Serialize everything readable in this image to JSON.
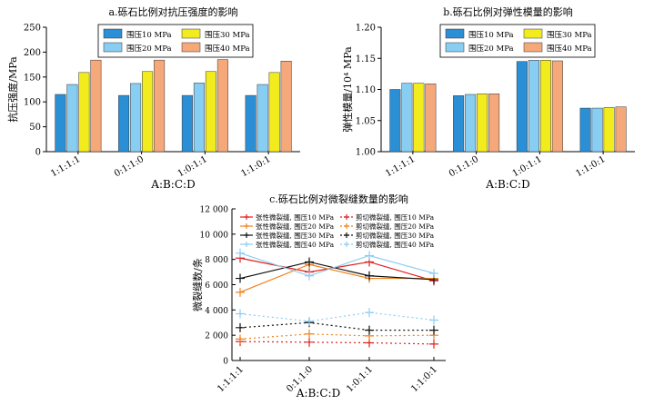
{
  "shared": {
    "xlabel": "A:B:C:D"
  },
  "chart_data": [
    {
      "type": "bar",
      "title": "a.砾石比例对抗压强度的影响",
      "ylabel": "抗压强度/MPa",
      "xlabel": "A:B:C:D",
      "categories": [
        "1:1:1:1",
        "0:1:1:0",
        "1:0:1:1",
        "1:1:0:1"
      ],
      "ylim": [
        0,
        250
      ],
      "yticks": [
        0,
        50,
        100,
        150,
        200,
        250
      ],
      "legend_position": "top-center",
      "series": [
        {
          "name": "围压10 MPa",
          "color": "#2b8fd6",
          "values": [
            115,
            113,
            113,
            113
          ]
        },
        {
          "name": "围压20 MPa",
          "color": "#88cdf2",
          "values": [
            135,
            137,
            138,
            135
          ]
        },
        {
          "name": "围压30 MPa",
          "color": "#f2ec1f",
          "values": [
            159,
            161,
            161,
            159
          ]
        },
        {
          "name": "围压40 MPa",
          "color": "#f5a87a",
          "values": [
            184,
            184,
            185,
            182
          ]
        }
      ]
    },
    {
      "type": "bar",
      "title": "b.砾石比例对弹性模量的影响",
      "ylabel": "弹性模量/10⁴ MPa",
      "xlabel": "A:B:C:D",
      "categories": [
        "1:1:1:1",
        "0:1:1:0",
        "1:0:1:1",
        "1:1:0:1"
      ],
      "ylim": [
        1.0,
        1.2
      ],
      "yticks": [
        "1.00",
        "1.05",
        "1.10",
        "1.15",
        "1.20"
      ],
      "legend_position": "top-center",
      "series": [
        {
          "name": "围压10 MPa",
          "color": "#2b8fd6",
          "values": [
            1.1,
            1.09,
            1.145,
            1.07
          ]
        },
        {
          "name": "围压20 MPa",
          "color": "#88cdf2",
          "values": [
            1.11,
            1.092,
            1.147,
            1.07
          ]
        },
        {
          "name": "围压30 MPa",
          "color": "#f2ec1f",
          "values": [
            1.11,
            1.093,
            1.147,
            1.071
          ]
        },
        {
          "name": "围压40 MPa",
          "color": "#f5a87a",
          "values": [
            1.109,
            1.093,
            1.146,
            1.072
          ]
        }
      ]
    },
    {
      "type": "line",
      "title": "c.砾石比例对微裂缝数量的影响",
      "ylabel": "微裂缝数/条",
      "xlabel": "A:B:C:D",
      "categories": [
        "1:1:1:1",
        "0:1:1:0",
        "1:0:1:1",
        "1:1:0:1"
      ],
      "ylim": [
        0,
        12000
      ],
      "yticks": [
        "0",
        "2 000",
        "4 000",
        "6 000",
        "8 000",
        "10 000",
        "12 000"
      ],
      "legend_position": "top",
      "series": [
        {
          "name": "张性微裂缝, 围压10 MPa",
          "color": "#e02020",
          "dash": false,
          "values": [
            8100,
            7000,
            7800,
            6300
          ]
        },
        {
          "name": "剪切微裂缝, 围压10 MPa",
          "color": "#e02020",
          "dash": true,
          "values": [
            1500,
            1450,
            1400,
            1300
          ]
        },
        {
          "name": "张性微裂缝, 围压20 MPa",
          "color": "#f0821e",
          "dash": false,
          "values": [
            5400,
            7600,
            6500,
            6500
          ]
        },
        {
          "name": "剪切微裂缝, 围压20 MPa",
          "color": "#f0821e",
          "dash": true,
          "values": [
            1700,
            2100,
            1950,
            2000
          ]
        },
        {
          "name": "张性微裂缝, 围压30 MPa",
          "color": "#111111",
          "dash": false,
          "values": [
            6500,
            7800,
            6700,
            6400
          ]
        },
        {
          "name": "剪切微裂缝, 围压30 MPa",
          "color": "#111111",
          "dash": true,
          "values": [
            2600,
            3000,
            2400,
            2400
          ]
        },
        {
          "name": "张性微裂缝, 围压40 MPa",
          "color": "#8ecdf2",
          "dash": false,
          "values": [
            8500,
            6700,
            8300,
            6900
          ]
        },
        {
          "name": "剪切微裂缝, 围压40 MPa",
          "color": "#8ecdf2",
          "dash": true,
          "values": [
            3700,
            3100,
            3800,
            3200
          ]
        }
      ]
    }
  ]
}
